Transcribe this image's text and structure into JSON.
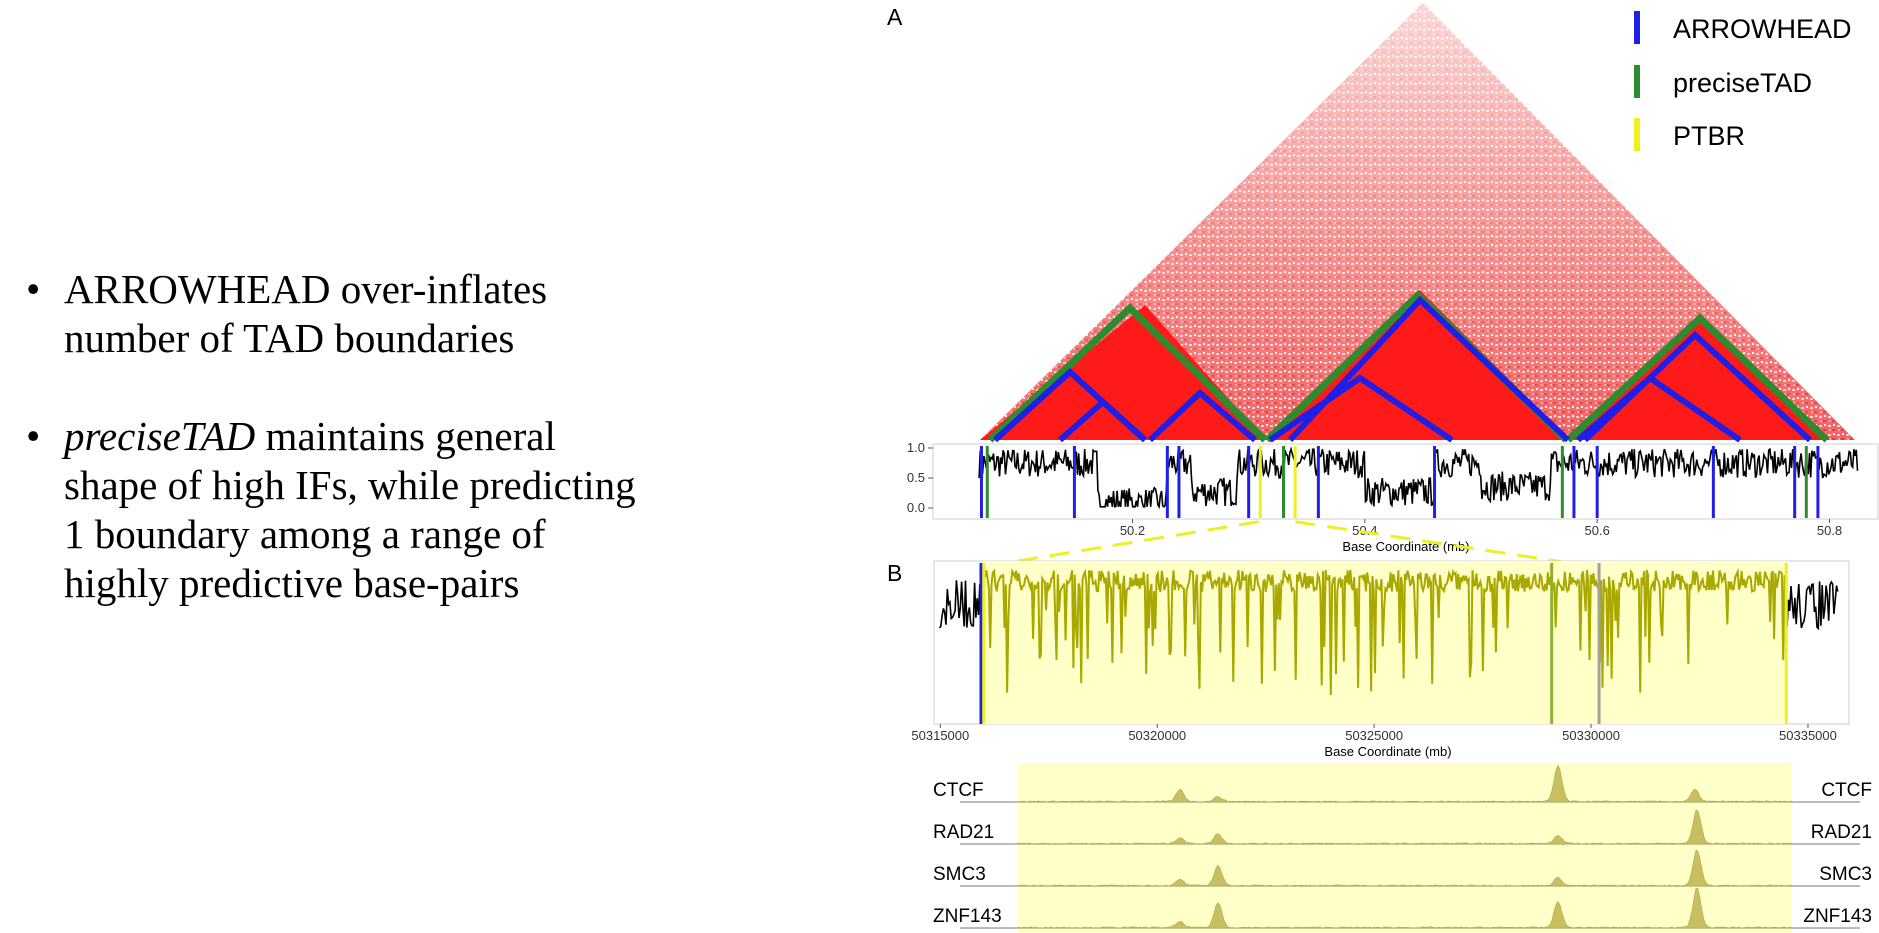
{
  "bullets": [
    {
      "lines": [
        "ARROWHEAD over-inflates",
        "number of TAD boundaries"
      ]
    },
    {
      "italic": "preciseTAD",
      "lines": [
        " maintains general",
        "shape of high IFs, while predicting",
        "1 boundary among a range of",
        "highly predictive base-pairs"
      ]
    }
  ],
  "figure": {
    "panel_a": "A",
    "panel_b": "B",
    "legend": [
      {
        "label": "ARROWHEAD",
        "color": "#1f1fe6"
      },
      {
        "label": "preciseTAD",
        "color": "#2e8b2e"
      },
      {
        "label": "PTBR",
        "color": "#f0f020"
      }
    ],
    "track_labels": [
      "CTCF",
      "RAD21",
      "SMC3",
      "ZNF143"
    ]
  },
  "chart_data": [
    {
      "type": "line",
      "panel": "A",
      "xlabel": "Base Coordinate (mb)",
      "ylabel": "",
      "xlim": [
        50.03,
        50.84
      ],
      "ylim": [
        0,
        1.0
      ],
      "x_ticks": [
        "50.2",
        "50.4",
        "50.6",
        "50.8"
      ],
      "x_tick_values": [
        50.2,
        50.4,
        50.6,
        50.8
      ],
      "y_ticks": [
        "0.0",
        "0.5",
        "1.0"
      ],
      "y_tick_values": [
        0,
        0.5,
        1.0
      ],
      "arrowhead_boundaries": [
        50.07,
        50.15,
        50.23,
        50.24,
        50.3,
        50.33,
        50.36,
        50.46,
        50.58,
        50.6,
        50.7,
        50.77,
        50.79
      ],
      "precisetad_boundaries": [
        50.075,
        50.33,
        50.57,
        50.78
      ],
      "ptbr_boundaries": [
        50.31,
        50.34
      ]
    },
    {
      "type": "line",
      "panel": "B",
      "xlabel": "Base Coordinate (mb)",
      "ylabel": "",
      "xlim": [
        50314900,
        50335900
      ],
      "x_ticks": [
        "50315000",
        "50320000",
        "50325000",
        "50330000",
        "50335000"
      ],
      "x_tick_values": [
        50315000,
        50320000,
        50325000,
        50330000,
        50335000
      ],
      "ptbr_range": [
        50316000,
        50334500
      ],
      "arrowhead_boundaries": [
        50316000
      ],
      "precisetad_boundaries": [
        50329000
      ],
      "gray_markers": [
        50330000
      ]
    }
  ]
}
